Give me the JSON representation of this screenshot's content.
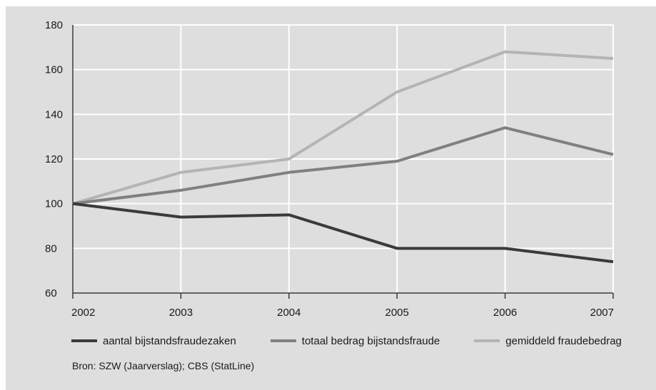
{
  "chart_data": {
    "type": "line",
    "x": [
      "2002",
      "2003",
      "2004",
      "2005",
      "2006",
      "2007"
    ],
    "series": [
      {
        "name": "aantal bijstandsfraudezaken",
        "values": [
          100,
          94,
          95,
          80,
          80,
          74
        ],
        "color": "#3a3a3a"
      },
      {
        "name": "totaal bedrag bijstandsfraude",
        "values": [
          100,
          106,
          114,
          119,
          134,
          122
        ],
        "color": "#808080"
      },
      {
        "name": "gemiddeld fraudebedrag",
        "values": [
          100,
          114,
          120,
          150,
          168,
          165
        ],
        "color": "#b4b4b4"
      }
    ],
    "ylim": [
      60,
      180
    ],
    "yticks": [
      60,
      80,
      100,
      120,
      140,
      160,
      180
    ],
    "grid": true,
    "legend_position": "bottom",
    "background_color": "#dedede",
    "grid_color": "#ffffff",
    "axis_color": "#3a3a3a"
  },
  "source_text": "Bron: SZW (Jaarverslag); CBS (StatLine)"
}
